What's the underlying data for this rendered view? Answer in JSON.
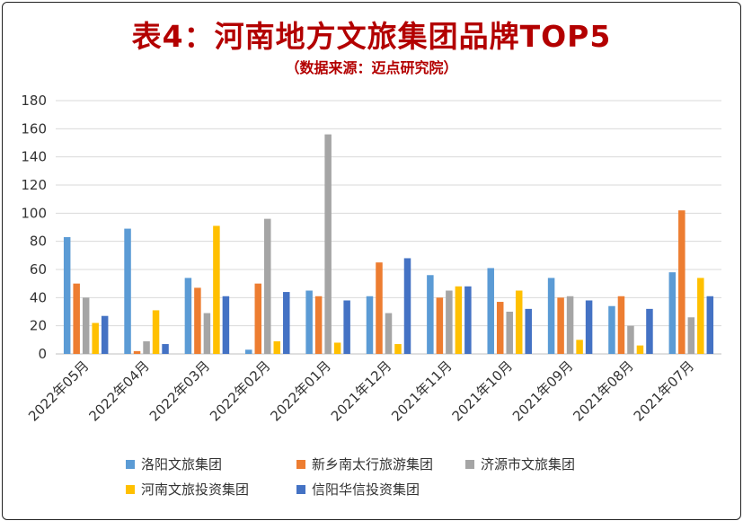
{
  "title": "表4：河南地方文旅集团品牌TOP5",
  "subtitle": "（数据来源：迈点研究院）",
  "chart_data": {
    "type": "bar",
    "categories": [
      "2022年05月",
      "2022年04月",
      "2022年03月",
      "2022年02月",
      "2022年01月",
      "2021年12月",
      "2021年11月",
      "2021年10月",
      "2021年09月",
      "2021年08月",
      "2021年07月"
    ],
    "series": [
      {
        "name": "洛阳文旅集团",
        "color": "#5b9bd5",
        "values": [
          83,
          89,
          54,
          3,
          45,
          41,
          56,
          61,
          54,
          34,
          58
        ]
      },
      {
        "name": "新乡南太行旅游集团",
        "color": "#ed7d31",
        "values": [
          50,
          2,
          47,
          50,
          41,
          65,
          40,
          37,
          40,
          41,
          102
        ]
      },
      {
        "name": "济源市文旅集团",
        "color": "#a5a5a5",
        "values": [
          40,
          9,
          29,
          96,
          156,
          29,
          45,
          30,
          41,
          20,
          26
        ]
      },
      {
        "name": "河南文旅投资集团",
        "color": "#ffc000",
        "values": [
          22,
          31,
          91,
          9,
          8,
          7,
          48,
          45,
          10,
          6,
          54
        ]
      },
      {
        "name": "信阳华信投资集团",
        "color": "#4472c4",
        "values": [
          27,
          7,
          41,
          44,
          38,
          68,
          48,
          32,
          38,
          32,
          41
        ]
      }
    ],
    "ylim": [
      0,
      180
    ],
    "yticks": [
      0,
      20,
      40,
      60,
      80,
      100,
      120,
      140,
      160,
      180
    ],
    "grid": true,
    "legend_position": "bottom"
  }
}
